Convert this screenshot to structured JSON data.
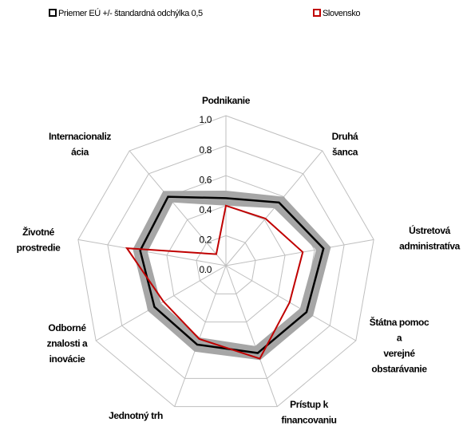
{
  "chart_data": {
    "type": "radar",
    "categories": [
      [
        "Podnikanie"
      ],
      [
        "Druhá",
        "šanca"
      ],
      [
        "Ústretová",
        "administratíva"
      ],
      [
        "Štátna pomoc",
        "a",
        "verejné",
        "obstarávanie"
      ],
      [
        "Prístup k",
        "financovaniu"
      ],
      [
        "Jednotný trh"
      ],
      [
        "Odborné",
        "znalosti a",
        "inovácie"
      ],
      [
        "Životné",
        "prostredie"
      ],
      [
        "Internacionaliz",
        "ácia"
      ]
    ],
    "series": [
      {
        "name": "Priemer EÚ +/- štandardná odchýlka 0,5",
        "color": "#000000",
        "band_color": "#a6a6a6",
        "values": [
          0.45,
          0.55,
          0.66,
          0.62,
          0.62,
          0.56,
          0.55,
          0.58,
          0.6
        ],
        "errors": [
          0.05,
          0.05,
          0.05,
          0.05,
          0.05,
          0.05,
          0.05,
          0.05,
          0.05
        ]
      },
      {
        "name": "Slovensko",
        "color": "#c00000",
        "values": [
          0.4,
          0.41,
          0.52,
          0.49,
          0.66,
          0.52,
          0.48,
          0.67,
          0.1
        ]
      }
    ],
    "rlim": [
      0,
      1
    ],
    "rticks": [
      {
        "value": 0,
        "label": "0.0"
      },
      {
        "value": 0.2,
        "label": "0.2"
      },
      {
        "value": 0.4,
        "label": "0.4"
      },
      {
        "value": 0.6,
        "label": "0.6"
      },
      {
        "value": 0.8,
        "label": "0.8"
      },
      {
        "value": 1,
        "label": "1.0"
      }
    ],
    "grid": true
  }
}
